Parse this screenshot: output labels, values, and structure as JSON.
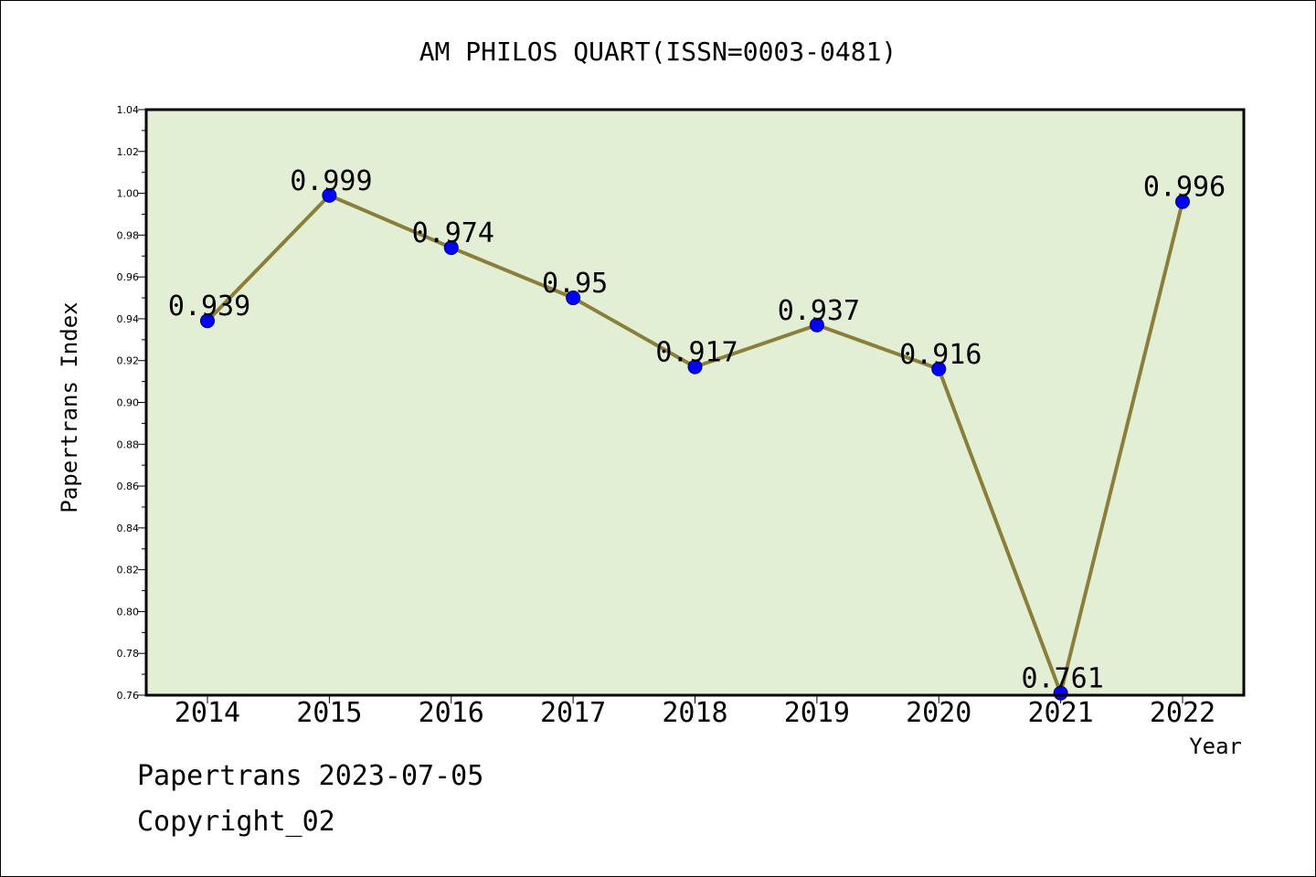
{
  "chart_data": {
    "type": "line",
    "title": "AM PHILOS QUART(ISSN=0003-0481)",
    "xlabel": "Year",
    "ylabel": "Papertrans Index",
    "categories": [
      "2014",
      "2015",
      "2016",
      "2017",
      "2018",
      "2019",
      "2020",
      "2021",
      "2022"
    ],
    "series": [
      {
        "values": [
          0.939,
          0.999,
          0.974,
          0.95,
          0.917,
          0.937,
          0.916,
          0.761,
          0.996
        ]
      }
    ],
    "data_labels": [
      "0.939",
      "0.999",
      "0.974",
      "0.95",
      "0.917",
      "0.937",
      "0.916",
      "0.761",
      "0.996"
    ],
    "ylim": [
      0.76,
      1.04
    ],
    "yticks": [
      "0.76",
      "0.78",
      "0.80",
      "0.82",
      "0.84",
      "0.86",
      "0.88",
      "0.90",
      "0.92",
      "0.94",
      "0.96",
      "0.98",
      "1.00",
      "1.02",
      "1.04"
    ],
    "grid": false,
    "legend": "none",
    "colors": {
      "plot_background": "#e2efd5",
      "line": "#8b7d3a",
      "marker": "#0000ff"
    }
  },
  "footer": {
    "line1": "Papertrans 2023-07-05",
    "line2": "Copyright_02"
  }
}
